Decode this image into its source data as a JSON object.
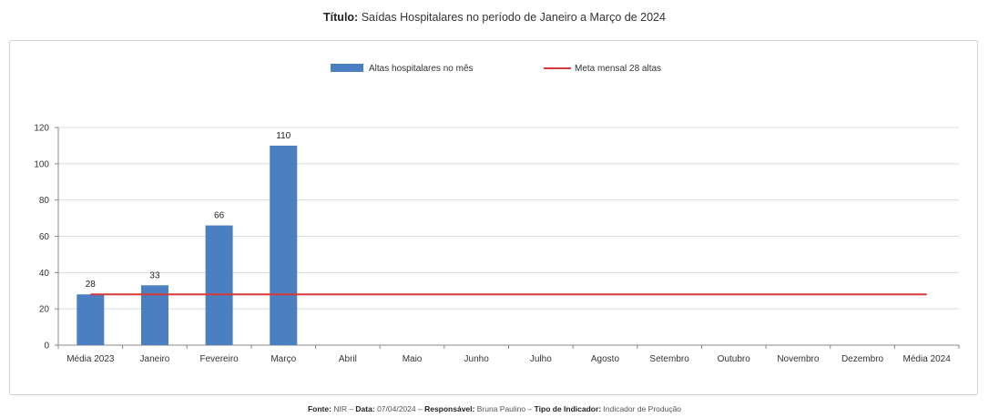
{
  "title": {
    "label": "Título:",
    "text": "Saídas Hospitalares no período de Janeiro a Março de 2024"
  },
  "footer": {
    "source_label": "Fonte:",
    "source_value": "NIR",
    "date_label": "Data:",
    "date_value": "07/04/2024",
    "responsible_label": "Responsável:",
    "responsible_value": "Bruna Paulino",
    "type_label": "Tipo de Indicador:",
    "type_value": "Indicador de Produção"
  },
  "chart_data": {
    "type": "bar",
    "categories": [
      "Média 2023",
      "Janeiro",
      "Fevereiro",
      "Março",
      "Abril",
      "Maio",
      "Junho",
      "Julho",
      "Agosto",
      "Setembro",
      "Outubro",
      "Novembro",
      "Dezembro",
      "Média 2024"
    ],
    "series": [
      {
        "name": "Altas hospitalares no mês",
        "type": "bar",
        "color": "#4a7fc1",
        "values": [
          28,
          33,
          66,
          110,
          null,
          null,
          null,
          null,
          null,
          null,
          null,
          null,
          null,
          null
        ],
        "data_labels": [
          "28",
          "33",
          "66",
          "110"
        ]
      },
      {
        "name": "Meta mensal 28 altas",
        "type": "line",
        "color": "#d9383a",
        "values": [
          28,
          28,
          28,
          28,
          28,
          28,
          28,
          28,
          28,
          28,
          28,
          28,
          28,
          28
        ]
      }
    ],
    "ylim": [
      0,
      120
    ],
    "yticks": [
      0,
      20,
      40,
      60,
      80,
      100,
      120
    ],
    "grid": true,
    "legend_position": "top-center"
  }
}
